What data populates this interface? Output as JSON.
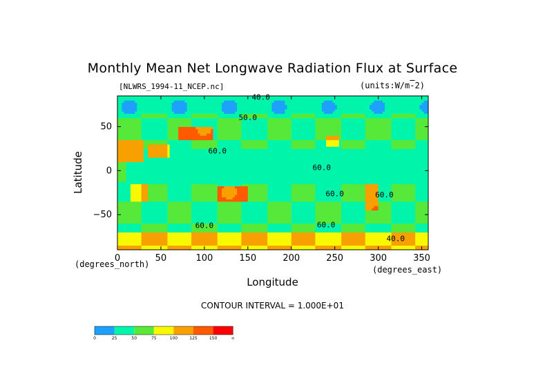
{
  "chart_data": {
    "type": "heatmap",
    "title": "Monthly Mean Net Longwave Radiation Flux at Surface",
    "file_label": "[NLWRS_1994-11_NCEP.nc]",
    "units_label": "(units:W/m^-2)",
    "xlabel": "Longitude",
    "xunits": "(degrees_east)",
    "ylabel": "Latitude",
    "yunits": "(degrees_north)",
    "xlim": [
      0,
      357.5
    ],
    "ylim": [
      -90,
      85
    ],
    "x_ticks": [
      0,
      50,
      100,
      150,
      200,
      250,
      300,
      350
    ],
    "y_ticks": [
      50,
      0,
      -50
    ],
    "y_tick_labels": [
      "50",
      "0",
      "−50"
    ],
    "contour_interval_text": "CONTOUR INTERVAL = 1.000E+01",
    "contour_labels": [
      {
        "text": "40.0",
        "x": 165,
        "y": 83
      },
      {
        "text": "50.0",
        "x": 150,
        "y": 60
      },
      {
        "text": "60.0",
        "x": 115,
        "y": 22
      },
      {
        "text": "60.0",
        "x": 235,
        "y": 3
      },
      {
        "text": "60.0",
        "x": 250,
        "y": -27
      },
      {
        "text": "60.0",
        "x": 240,
        "y": -62
      },
      {
        "text": "60.0",
        "x": 100,
        "y": -63
      },
      {
        "text": "60.0",
        "x": 307,
        "y": -28
      },
      {
        "text": "40.0",
        "x": 320,
        "y": -78
      }
    ],
    "colorbar": {
      "boundaries": [
        "0",
        "25",
        "50",
        "75",
        "100",
        "125",
        "150",
        "∞"
      ],
      "colors": [
        "#1ea0ff",
        "#00f5aa",
        "#57e83a",
        "#f8f800",
        "#f8a000",
        "#ff5a00",
        "#ff0000"
      ]
    },
    "fields": [
      {
        "name": "base",
        "value": 50
      },
      {
        "name": "tropical-band-low",
        "region": {
          "x": [
            10,
            357
          ],
          "y": [
            -15,
            25
          ]
        },
        "value": 40
      },
      {
        "name": "north-africa-high",
        "region": {
          "x": [
            0,
            30
          ],
          "y": [
            10,
            35
          ]
        },
        "value": 120
      },
      {
        "name": "arabia-high",
        "region": {
          "x": [
            35,
            60
          ],
          "y": [
            15,
            30
          ]
        },
        "value": 100
      },
      {
        "name": "central-asia-high",
        "region": {
          "x": [
            70,
            110
          ],
          "y": [
            35,
            50
          ]
        },
        "value": 130
      },
      {
        "name": "western-us-high",
        "region": {
          "x": [
            240,
            255
          ],
          "y": [
            28,
            40
          ]
        },
        "value": 100
      },
      {
        "name": "southern-africa-high",
        "region": {
          "x": [
            15,
            35
          ],
          "y": [
            -35,
            -15
          ]
        },
        "value": 100
      },
      {
        "name": "australia-high",
        "region": {
          "x": [
            115,
            150
          ],
          "y": [
            -35,
            -18
          ]
        },
        "value": 130
      },
      {
        "name": "south-america-high",
        "region": {
          "x": [
            285,
            300
          ],
          "y": [
            -45,
            -15
          ]
        },
        "value": 120
      },
      {
        "name": "antarctic-band-high",
        "region": {
          "x": [
            0,
            357
          ],
          "y": [
            -90,
            -70
          ]
        },
        "value": 100
      },
      {
        "name": "arctic-band-low",
        "region": {
          "x": [
            0,
            357
          ],
          "y": [
            65,
            85
          ]
        },
        "value": 30
      }
    ]
  }
}
